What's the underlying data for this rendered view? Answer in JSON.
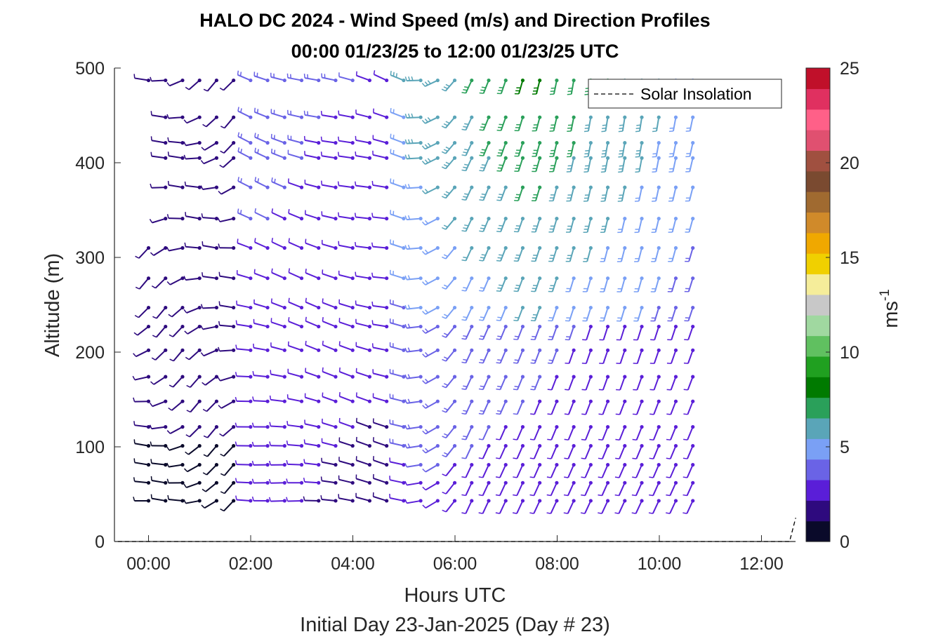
{
  "chart_data": {
    "type": "wind-barb-profile",
    "title": "HALO DC 2024 - Wind Speed (m/s) and Direction Profiles",
    "subtitle": "00:00 01/23/25 to 12:00 01/23/25  UTC",
    "xlabel": "Hours UTC",
    "x_sublabel": "Initial Day 23-Jan-2025 (Day # 23)",
    "ylabel": "Altitude (m)",
    "xlim": [
      -0.667,
      12.667
    ],
    "ylim": [
      0,
      500
    ],
    "x_ticks": [
      0,
      2,
      4,
      6,
      8,
      10,
      12
    ],
    "x_tick_labels": [
      "00:00",
      "02:00",
      "04:00",
      "06:00",
      "08:00",
      "10:00",
      "12:00"
    ],
    "y_ticks": [
      0,
      100,
      200,
      300,
      400,
      500
    ],
    "y_tick_labels": [
      "0",
      "100",
      "200",
      "300",
      "400",
      "500"
    ],
    "legend": {
      "entries": [
        "Solar Insolation"
      ],
      "placement": "top-right"
    },
    "colorbar": {
      "label": "ms",
      "label_superscript": "-1",
      "range": [
        0,
        25
      ],
      "ticks": [
        0,
        5,
        10,
        15,
        20,
        25
      ],
      "tick_labels": [
        "0",
        "5",
        "10",
        "15",
        "20",
        "25"
      ],
      "colors": [
        "#0a0a2a",
        "#2e0a7e",
        "#5a1ed8",
        "#6a63e6",
        "#7aa0f5",
        "#5aa5b8",
        "#2aa05a",
        "#007a00",
        "#20a020",
        "#60c060",
        "#a0d8a0",
        "#c8c8c8",
        "#f5ed9a",
        "#f0d000",
        "#f0a800",
        "#d08a2a",
        "#a06a30",
        "#7a4a30",
        "#a05040",
        "#e05070",
        "#ff6088",
        "#e03060",
        "#c0102a"
      ]
    },
    "wind_time_range_hours": [
      0.0,
      10.75
    ],
    "wind_time_step_hours": 0.333,
    "altitudes_m": [
      43,
      62,
      81,
      101,
      121,
      148,
      174,
      202,
      227,
      247,
      278,
      310,
      341,
      374,
      405,
      421,
      448,
      487
    ],
    "solar_insolation": {
      "x": [
        -0.6,
        12.55,
        12.67
      ],
      "y": [
        0,
        0,
        25
      ]
    }
  }
}
